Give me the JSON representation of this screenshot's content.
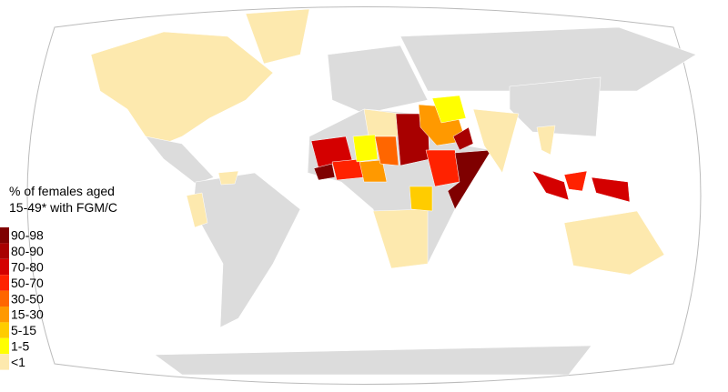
{
  "legend": {
    "title": [
      "% of females aged",
      "15-49* with FGM/C"
    ],
    "items": [
      {
        "label": "90-98",
        "color": "#7f0000"
      },
      {
        "label": "80-90",
        "color": "#a80000"
      },
      {
        "label": "70-80",
        "color": "#d40000"
      },
      {
        "label": "50-70",
        "color": "#ff2200"
      },
      {
        "label": "30-50",
        "color": "#ff6600"
      },
      {
        "label": "15-30",
        "color": "#ff9900"
      },
      {
        "label": "5-15",
        "color": "#ffcc00"
      },
      {
        "label": "1-5",
        "color": "#ffff00"
      },
      {
        "label": "<1",
        "color": "#fde9ae"
      }
    ]
  }
}
